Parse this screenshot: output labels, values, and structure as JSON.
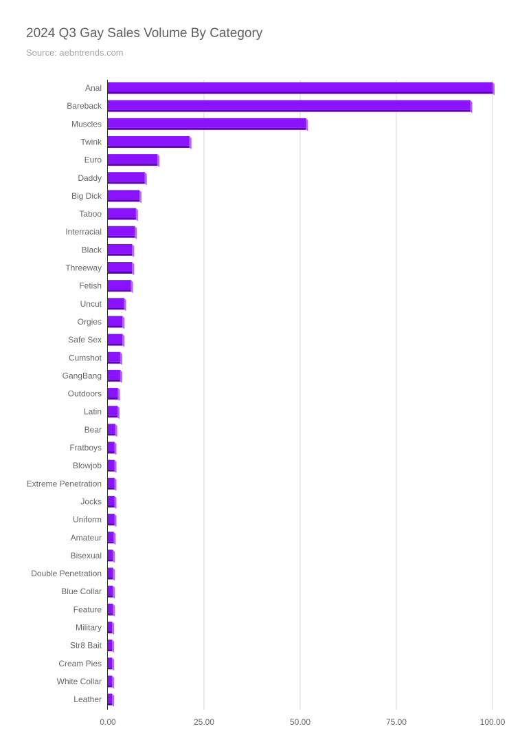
{
  "title": "2024 Q3 Gay Sales Volume By Category",
  "subtitle": "Source: aebntrends.com",
  "chart_data": {
    "type": "bar",
    "orientation": "horizontal",
    "title": "2024 Q3 Gay Sales Volume By Category",
    "subtitle": "Source: aebntrends.com",
    "categories": [
      "Anal",
      "Bareback",
      "Muscles",
      "Twink",
      "Euro",
      "Daddy",
      "Big Dick",
      "Taboo",
      "Interracial",
      "Black",
      "Threeway",
      "Fetish",
      "Uncut",
      "Orgies",
      "Safe Sex",
      "Cumshot",
      "GangBang",
      "Outdoors",
      "Latin",
      "Bear",
      "Fratboys",
      "Blowjob",
      "Extreme Penetration",
      "Jocks",
      "Uniform",
      "Amateur",
      "Bisexual",
      "Double Penetration",
      "Blue Collar",
      "Feature",
      "Military",
      "Str8 Bait",
      "Cream Pies",
      "White Collar",
      "Leather"
    ],
    "values": [
      100,
      94.2,
      51.5,
      21.2,
      12.9,
      9.6,
      8.2,
      7.3,
      7.0,
      6.3,
      6.3,
      6.0,
      4.2,
      3.8,
      3.8,
      3.2,
      3.2,
      2.6,
      2.5,
      1.9,
      1.7,
      1.7,
      1.7,
      1.7,
      1.7,
      1.5,
      1.3,
      1.3,
      1.3,
      1.3,
      1.1,
      1.1,
      1.1,
      1.1,
      1.1
    ],
    "xlim": [
      0,
      100
    ],
    "xticks": [
      "0.00",
      "25.00",
      "50.00",
      "75.00",
      "100.00"
    ],
    "xtick_values": [
      0,
      25,
      50,
      75,
      100
    ],
    "grid": true,
    "legend": "none",
    "colors": {
      "bar": "#8b12ff",
      "bar_shadow": "#5a08a8",
      "bar_side": "#b066ff"
    }
  }
}
